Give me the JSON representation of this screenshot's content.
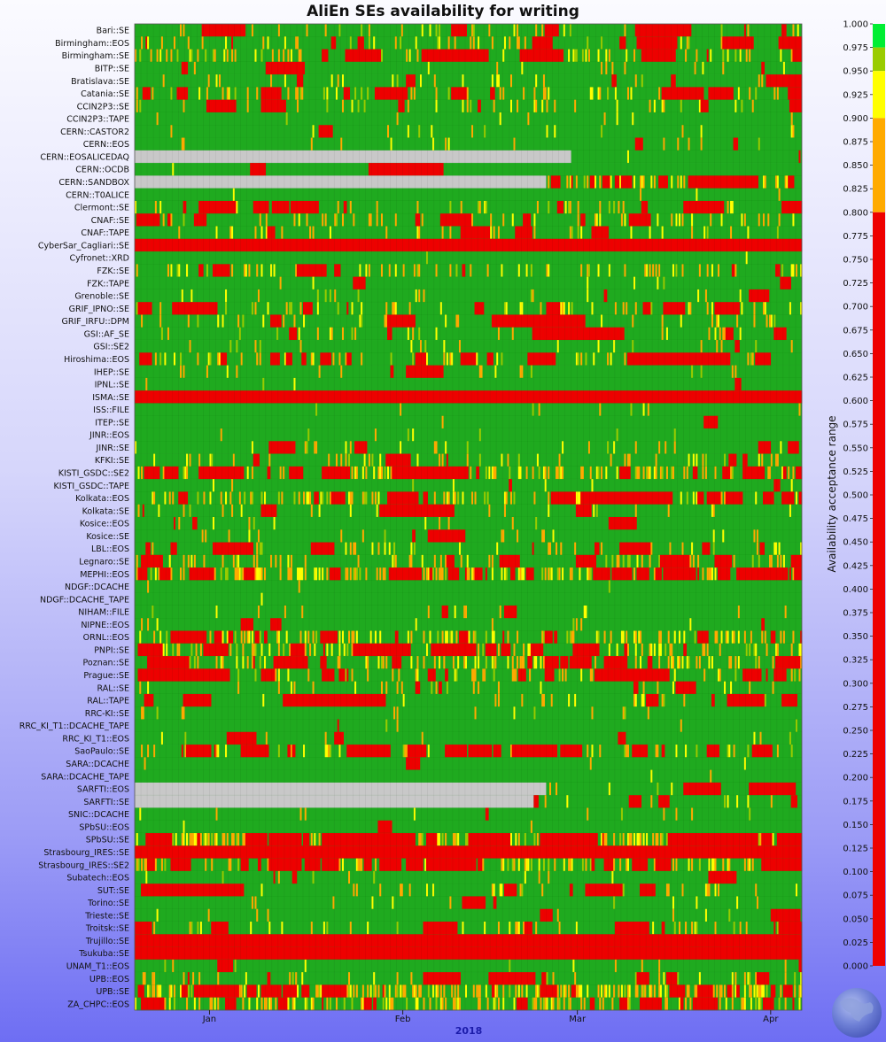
{
  "chart_data": {
    "type": "heatmap",
    "title": "AliEn SEs availability for writing",
    "xlabel": "2018",
    "x_ticks": [
      "Jan",
      "Feb",
      "Mar",
      "Apr"
    ],
    "x_range": [
      "2017-12-20",
      "2018-04-06"
    ],
    "colorbar": {
      "label": "Availability acceptance range",
      "min": 0.0,
      "max": 1.0,
      "ticks": [
        "1.000",
        "0.975",
        "0.950",
        "0.925",
        "0.900",
        "0.875",
        "0.850",
        "0.825",
        "0.800",
        "0.775",
        "0.750",
        "0.725",
        "0.700",
        "0.675",
        "0.650",
        "0.625",
        "0.600",
        "0.575",
        "0.550",
        "0.525",
        "0.500",
        "0.475",
        "0.450",
        "0.425",
        "0.400",
        "0.375",
        "0.350",
        "0.325",
        "0.300",
        "0.275",
        "0.250",
        "0.225",
        "0.200",
        "0.175",
        "0.150",
        "0.125",
        "0.100",
        "0.075",
        "0.050",
        "0.025",
        "0.000"
      ],
      "bands": [
        {
          "from": 0.975,
          "to": 1.0,
          "color": "#00ee33"
        },
        {
          "from": 0.95,
          "to": 0.975,
          "color": "#99cc00"
        },
        {
          "from": 0.9,
          "to": 0.95,
          "color": "#ffff00"
        },
        {
          "from": 0.8,
          "to": 0.9,
          "color": "#ffaa00"
        },
        {
          "from": 0.0,
          "to": 0.8,
          "color": "#ee0000"
        }
      ]
    },
    "no_data_color": "#c8c8c8",
    "series": [
      {
        "name": "Bari::SE",
        "availability": 0.82
      },
      {
        "name": "Birmingham::EOS",
        "availability": 0.8
      },
      {
        "name": "Birmingham::SE",
        "availability": 0.72
      },
      {
        "name": "BITP::SE",
        "availability": 0.94
      },
      {
        "name": "Bratislava::SE",
        "availability": 0.84
      },
      {
        "name": "Catania::SE",
        "availability": 0.7
      },
      {
        "name": "CCIN2P3::SE",
        "availability": 0.88
      },
      {
        "name": "CCIN2P3::TAPE",
        "availability": 0.96
      },
      {
        "name": "CERN::CASTOR2",
        "availability": 0.92
      },
      {
        "name": "CERN::EOS",
        "availability": 0.93
      },
      {
        "name": "CERN::EOSALICEDAQ",
        "availability": 0.99
      },
      {
        "name": "CERN::OCDB",
        "availability": 0.98
      },
      {
        "name": "CERN::SANDBOX",
        "availability": 0.4
      },
      {
        "name": "CERN::T0ALICE",
        "availability": 0.99
      },
      {
        "name": "Clermont::SE",
        "availability": 0.78
      },
      {
        "name": "CNAF::SE",
        "availability": 0.78
      },
      {
        "name": "CNAF::TAPE",
        "availability": 0.82
      },
      {
        "name": "CyberSar_Cagliari::SE",
        "availability": 0.01
      },
      {
        "name": "Cyfronet::XRD",
        "availability": 0.99
      },
      {
        "name": "FZK::SE",
        "availability": 0.7
      },
      {
        "name": "FZK::TAPE",
        "availability": 0.97
      },
      {
        "name": "Grenoble::SE",
        "availability": 0.9
      },
      {
        "name": "GRIF_IPNO::SE",
        "availability": 0.72
      },
      {
        "name": "GRIF_IRFU::DPM",
        "availability": 0.8
      },
      {
        "name": "GSI::AF_SE",
        "availability": 0.88
      },
      {
        "name": "GSI::SE2",
        "availability": 0.95
      },
      {
        "name": "Hiroshima::EOS",
        "availability": 0.6
      },
      {
        "name": "IHEP::SE",
        "availability": 0.95
      },
      {
        "name": "IPNL::SE",
        "availability": 0.99
      },
      {
        "name": "ISMA::SE",
        "availability": 0.01
      },
      {
        "name": "ISS::FILE",
        "availability": 0.97
      },
      {
        "name": "ITEP::SE",
        "availability": 0.98
      },
      {
        "name": "JINR::EOS",
        "availability": 0.96
      },
      {
        "name": "JINR::SE",
        "availability": 0.88
      },
      {
        "name": "KFKI::SE",
        "availability": 0.8
      },
      {
        "name": "KISTI_GSDC::SE2",
        "availability": 0.45
      },
      {
        "name": "KISTI_GSDC::TAPE",
        "availability": 0.95
      },
      {
        "name": "Kolkata::EOS",
        "availability": 0.55
      },
      {
        "name": "Kolkata::SE",
        "availability": 0.92
      },
      {
        "name": "Kosice::EOS",
        "availability": 0.94
      },
      {
        "name": "Kosice::SE",
        "availability": 0.94
      },
      {
        "name": "LBL::EOS",
        "availability": 0.8
      },
      {
        "name": "Legnaro::SE",
        "availability": 0.7
      },
      {
        "name": "MEPHI::EOS",
        "availability": 0.08
      },
      {
        "name": "NDGF::DCACHE",
        "availability": 0.99
      },
      {
        "name": "NDGF::DCACHE_TAPE",
        "availability": 0.99
      },
      {
        "name": "NIHAM::FILE",
        "availability": 0.92
      },
      {
        "name": "NIPNE::EOS",
        "availability": 0.93
      },
      {
        "name": "ORNL::EOS",
        "availability": 0.55
      },
      {
        "name": "PNPI::SE",
        "availability": 0.55
      },
      {
        "name": "Poznan::SE",
        "availability": 0.45
      },
      {
        "name": "Prague::SE",
        "availability": 0.72
      },
      {
        "name": "RAL::SE",
        "availability": 0.88
      },
      {
        "name": "RAL::TAPE",
        "availability": 0.85
      },
      {
        "name": "RRC-KI::SE",
        "availability": 0.97
      },
      {
        "name": "RRC_KI_T1::DCACHE_TAPE",
        "availability": 0.98
      },
      {
        "name": "RRC_KI_T1::EOS",
        "availability": 0.96
      },
      {
        "name": "SaoPaulo::SE",
        "availability": 0.68
      },
      {
        "name": "SARA::DCACHE",
        "availability": 0.98
      },
      {
        "name": "SARA::DCACHE_TAPE",
        "availability": 0.98
      },
      {
        "name": "SARFTI::EOS",
        "availability": 0.88
      },
      {
        "name": "SARFTI::SE",
        "availability": 0.85
      },
      {
        "name": "SNIC::DCACHE",
        "availability": 0.94
      },
      {
        "name": "SPbSU::EOS",
        "availability": 0.98
      },
      {
        "name": "SPbSU::SE",
        "availability": 0.1
      },
      {
        "name": "Strasbourg_IRES::SE",
        "availability": 0.02
      },
      {
        "name": "Strasbourg_IRES::SE2",
        "availability": 0.5
      },
      {
        "name": "Subatech::EOS",
        "availability": 0.95
      },
      {
        "name": "SUT::SE",
        "availability": 0.85
      },
      {
        "name": "Torino::SE",
        "availability": 0.96
      },
      {
        "name": "Trieste::SE",
        "availability": 0.96
      },
      {
        "name": "Troitsk::SE",
        "availability": 0.82
      },
      {
        "name": "Trujillo::SE",
        "availability": 0.01
      },
      {
        "name": "Tsukuba::SE",
        "availability": 0.01
      },
      {
        "name": "UNAM_T1::EOS",
        "availability": 0.92
      },
      {
        "name": "UPB::EOS",
        "availability": 0.75
      },
      {
        "name": "UPB::SE",
        "availability": 0.1
      },
      {
        "name": "ZA_CHPC::EOS",
        "availability": 0.45
      }
    ]
  }
}
